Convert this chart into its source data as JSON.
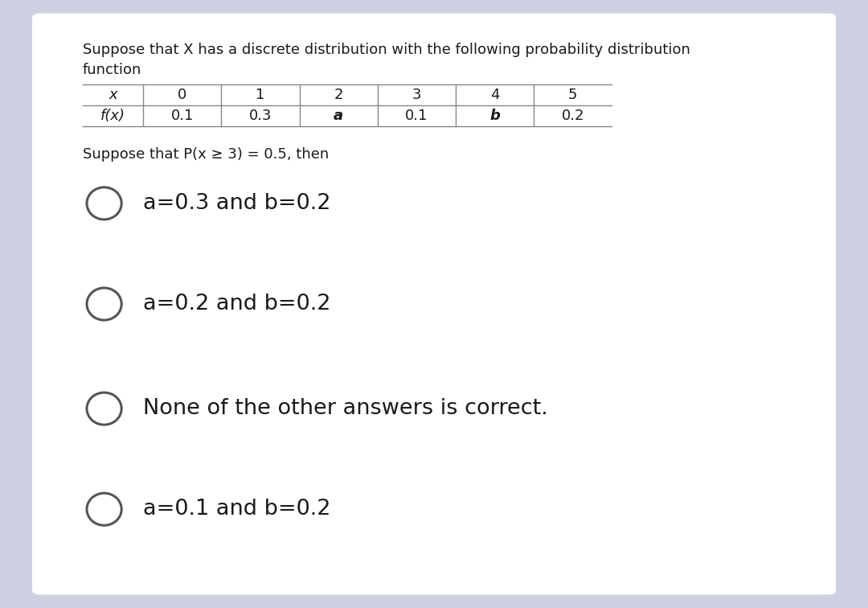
{
  "bg_color": "#cdd0e0",
  "card_color": "#ffffff",
  "title_line1": "Suppose that X has a discrete distribution with the following probability distribution",
  "title_line2": "function",
  "table_x_headers": [
    "x",
    "0",
    "1",
    "2",
    "3",
    "4",
    "5"
  ],
  "table_f_headers": [
    "f(x)",
    "0.1",
    "0.3",
    "a",
    "0.1",
    "b",
    "0.2"
  ],
  "condition": "Suppose that P(x ≥ 3) = 0.5, then",
  "options": [
    "a=0.3 and b=0.2",
    "a=0.2 and b=0.2",
    "None of the other answers is correct.",
    "a=0.1 and b=0.2"
  ],
  "title_fontsize": 13.0,
  "option_fontsize": 19.5,
  "condition_fontsize": 13.0,
  "table_fontsize": 13.0,
  "text_color": "#1a1a1a",
  "circle_color": "#555555",
  "table_line_color": "#888888"
}
